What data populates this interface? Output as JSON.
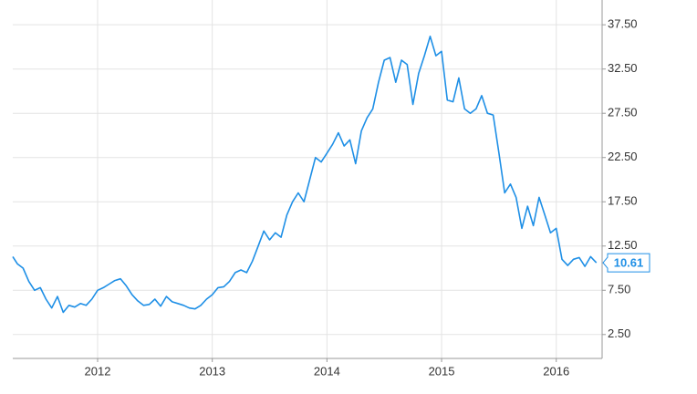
{
  "chart_data": {
    "type": "line",
    "x": [
      2011.26,
      2011.3,
      2011.35,
      2011.4,
      2011.45,
      2011.5,
      2011.55,
      2011.6,
      2011.65,
      2011.7,
      2011.75,
      2011.8,
      2011.85,
      2011.9,
      2011.95,
      2012.0,
      2012.05,
      2012.1,
      2012.15,
      2012.2,
      2012.25,
      2012.3,
      2012.35,
      2012.4,
      2012.45,
      2012.5,
      2012.55,
      2012.6,
      2012.65,
      2012.7,
      2012.75,
      2012.8,
      2012.85,
      2012.9,
      2012.95,
      2013.0,
      2013.05,
      2013.1,
      2013.15,
      2013.2,
      2013.25,
      2013.3,
      2013.35,
      2013.4,
      2013.45,
      2013.5,
      2013.55,
      2013.6,
      2013.65,
      2013.7,
      2013.75,
      2013.8,
      2013.85,
      2013.9,
      2013.95,
      2014.0,
      2014.05,
      2014.1,
      2014.15,
      2014.2,
      2014.25,
      2014.3,
      2014.35,
      2014.4,
      2014.45,
      2014.5,
      2014.55,
      2014.6,
      2014.65,
      2014.7,
      2014.75,
      2014.8,
      2014.85,
      2014.9,
      2014.95,
      2015.0,
      2015.05,
      2015.1,
      2015.15,
      2015.2,
      2015.25,
      2015.3,
      2015.35,
      2015.4,
      2015.45,
      2015.5,
      2015.55,
      2015.6,
      2015.65,
      2015.7,
      2015.75,
      2015.8,
      2015.85,
      2015.9,
      2015.95,
      2016.0,
      2016.05,
      2016.1,
      2016.15,
      2016.2,
      2016.25,
      2016.3,
      2016.35
    ],
    "values": [
      11.3,
      10.5,
      10.0,
      8.5,
      7.5,
      7.8,
      6.5,
      5.5,
      6.8,
      5.0,
      5.8,
      5.6,
      6.0,
      5.8,
      6.5,
      7.5,
      7.8,
      8.2,
      8.6,
      8.8,
      8.0,
      7.0,
      6.3,
      5.8,
      5.9,
      6.5,
      5.7,
      6.8,
      6.2,
      6.0,
      5.8,
      5.5,
      5.4,
      5.8,
      6.5,
      7.0,
      7.8,
      7.9,
      8.5,
      9.5,
      9.8,
      9.5,
      10.8,
      12.5,
      14.2,
      13.2,
      14.0,
      13.5,
      16.0,
      17.5,
      18.5,
      17.5,
      20.0,
      22.5,
      22.0,
      23.0,
      24.0,
      25.3,
      23.8,
      24.5,
      21.8,
      25.5,
      27.0,
      28.0,
      31.0,
      33.5,
      33.8,
      31.0,
      33.5,
      33.0,
      28.5,
      32.0,
      34.0,
      36.2,
      34.0,
      34.5,
      29.0,
      28.8,
      31.5,
      28.0,
      27.5,
      28.0,
      29.5,
      27.5,
      27.3,
      23.0,
      18.5,
      19.5,
      18.0,
      14.5,
      17.0,
      14.8,
      18.0,
      16.0,
      14.0,
      14.5,
      11.0,
      10.3,
      11.0,
      11.2,
      10.2,
      11.3,
      10.61
    ],
    "color": "#1e8fe6",
    "xlim": [
      2011.26,
      2016.4
    ],
    "xticks": [
      2012,
      2013,
      2014,
      2015,
      2016
    ],
    "ylim": [
      -0.2,
      40.3
    ],
    "yticks": [
      {
        "value": 2.5,
        "label": "2.50"
      },
      {
        "value": 7.5,
        "label": "7.50"
      },
      {
        "value": 12.5,
        "label": "12.50"
      },
      {
        "value": 17.5,
        "label": "17.50"
      },
      {
        "value": 22.5,
        "label": "22.50"
      },
      {
        "value": 27.5,
        "label": "27.50"
      },
      {
        "value": 32.5,
        "label": "32.50"
      },
      {
        "value": 37.5,
        "label": "37.50"
      }
    ],
    "grid": true
  }
}
